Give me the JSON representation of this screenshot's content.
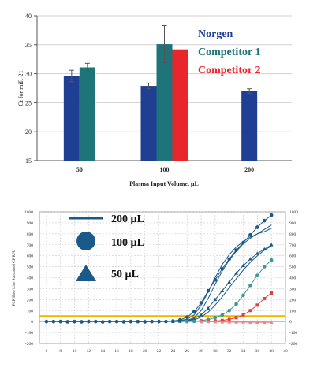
{
  "chart_data": [
    {
      "type": "bar",
      "ylabel": "Ct for miR-21",
      "xlabel": "Plasma Input Volume, µL",
      "ylim": [
        15,
        40
      ],
      "yticks": [
        15,
        20,
        25,
        30,
        35,
        40
      ],
      "grid": true,
      "legend_position": "top-right",
      "categories": [
        "50",
        "100",
        "200"
      ],
      "series": [
        {
          "name": "Norgen",
          "color": "#1f3f95",
          "values": [
            29.6,
            27.9,
            27.0
          ],
          "errors": [
            1.0,
            0.5,
            0.4
          ]
        },
        {
          "name": "Competitor 1",
          "color": "#1e7478",
          "values": [
            31.1,
            35.1,
            null
          ],
          "errors": [
            0.7,
            3.2,
            null
          ]
        },
        {
          "name": "Competitor 2",
          "color": "#e8262b",
          "values": [
            null,
            34.2,
            null
          ],
          "errors": [
            null,
            null,
            null
          ]
        }
      ]
    },
    {
      "type": "line",
      "ylabel": "PCR Base Line Subtracted CF RFU",
      "ylim": [
        -200,
        1000
      ],
      "yticks": [
        -200,
        -100,
        0,
        100,
        200,
        300,
        400,
        500,
        600,
        700,
        800,
        900,
        1000
      ],
      "xlim": [
        5,
        40
      ],
      "xticks": [
        6,
        8,
        10,
        12,
        14,
        16,
        18,
        20,
        22,
        24,
        26,
        28,
        30,
        32,
        34,
        36,
        38,
        40
      ],
      "threshold": 50,
      "threshold_color": "#f0b400",
      "grid": true,
      "legend_position": "top-left",
      "legend": [
        {
          "label": "200 µL",
          "marker": "line"
        },
        {
          "label": "100 µL",
          "marker": "circle"
        },
        {
          "label": "50 µL",
          "marker": "triangle"
        }
      ],
      "series": [
        {
          "label": "200 µL",
          "marker": "line",
          "color": "#1a5a8a",
          "x": [
            6,
            8,
            10,
            12,
            14,
            16,
            18,
            20,
            22,
            24,
            26,
            27,
            28,
            29,
            30,
            31,
            32,
            33,
            34,
            35,
            36,
            37,
            38
          ],
          "y": [
            0,
            0,
            0,
            0,
            0,
            0,
            0,
            0,
            0,
            2,
            20,
            60,
            150,
            270,
            400,
            520,
            610,
            680,
            730,
            770,
            800,
            820,
            850
          ]
        },
        {
          "label": "200 µL",
          "marker": "line",
          "color": "#1a5a8a",
          "x": [
            6,
            8,
            10,
            12,
            14,
            16,
            18,
            20,
            22,
            24,
            26,
            27,
            28,
            29,
            30,
            31,
            32,
            33,
            34,
            35,
            36,
            37,
            38
          ],
          "y": [
            0,
            0,
            0,
            0,
            0,
            0,
            0,
            0,
            0,
            1,
            10,
            35,
            100,
            210,
            340,
            460,
            560,
            640,
            710,
            760,
            800,
            840,
            880
          ]
        },
        {
          "label": "100 µL",
          "marker": "circle",
          "color": "#1a5a8a",
          "x": [
            6,
            7,
            8,
            9,
            10,
            11,
            12,
            13,
            14,
            15,
            16,
            17,
            18,
            19,
            20,
            21,
            22,
            23,
            24,
            25,
            26,
            27,
            28,
            29,
            30,
            31,
            32,
            33,
            34,
            35,
            36,
            37,
            38
          ],
          "y": [
            0,
            0,
            0,
            -2,
            0,
            -2,
            0,
            0,
            -3,
            0,
            0,
            -2,
            0,
            0,
            -2,
            0,
            0,
            0,
            5,
            15,
            40,
            90,
            170,
            280,
            380,
            480,
            570,
            650,
            720,
            790,
            860,
            920,
            970
          ]
        },
        {
          "label": "50 µL",
          "marker": "triangle",
          "color": "#1a5a8a",
          "x": [
            24,
            25,
            26,
            27,
            28,
            29,
            30,
            31,
            32,
            33,
            34,
            35,
            36,
            37,
            38
          ],
          "y": [
            0,
            2,
            8,
            25,
            60,
            120,
            200,
            280,
            360,
            440,
            510,
            570,
            620,
            660,
            700
          ]
        },
        {
          "label": "50 µL",
          "marker": "line",
          "color": "#1a5a8a",
          "x": [
            24,
            25,
            26,
            27,
            28,
            29,
            30,
            31,
            32,
            33,
            34,
            35,
            36,
            37,
            38
          ],
          "y": [
            0,
            1,
            5,
            15,
            40,
            85,
            150,
            225,
            310,
            390,
            470,
            540,
            600,
            650,
            690
          ]
        },
        {
          "label": "",
          "marker": "circle",
          "color": "#3a9a9a",
          "x": [
            26,
            27,
            28,
            29,
            30,
            31,
            32,
            33,
            34,
            35,
            36,
            37,
            38
          ],
          "y": [
            0,
            2,
            8,
            18,
            35,
            60,
            100,
            160,
            240,
            330,
            420,
            500,
            560
          ]
        },
        {
          "label": "",
          "marker": "square",
          "color": "#e04040",
          "x": [
            28,
            29,
            30,
            31,
            32,
            33,
            34,
            35,
            36,
            37,
            38
          ],
          "y": [
            0,
            2,
            5,
            10,
            20,
            35,
            60,
            100,
            150,
            210,
            260
          ]
        },
        {
          "label": "",
          "marker": "triangle",
          "color": "#e88a88",
          "x": [
            28,
            29,
            30,
            31,
            32,
            33,
            34,
            35,
            36,
            37,
            38
          ],
          "y": [
            0,
            -2,
            -3,
            -4,
            -5,
            -6,
            -6,
            -7,
            -8,
            -8,
            -8
          ]
        }
      ]
    }
  ]
}
